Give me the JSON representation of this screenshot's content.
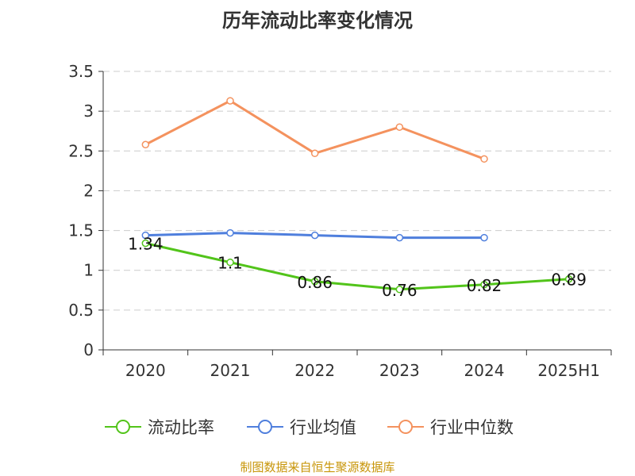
{
  "chart_data": {
    "type": "line",
    "title": "历年流动比率变化情况",
    "categories": [
      "2020",
      "2021",
      "2022",
      "2023",
      "2024",
      "2025H1"
    ],
    "ylim": [
      0,
      3.5
    ],
    "yticks": [
      "0",
      "0.5",
      "1",
      "1.5",
      "2",
      "2.5",
      "3",
      "3.5"
    ],
    "grid": true,
    "legend_position": "bottom",
    "series": [
      {
        "name": "流动比率",
        "color": "#52c41a",
        "values": [
          1.34,
          1.1,
          0.86,
          0.76,
          0.82,
          0.89
        ],
        "labels": [
          "1.34",
          "1.1",
          "0.86",
          "0.76",
          "0.82",
          "0.89"
        ]
      },
      {
        "name": "行业均值",
        "color": "#4f7fdd",
        "values": [
          1.44,
          1.47,
          1.44,
          1.41,
          1.41,
          null
        ]
      },
      {
        "name": "行业中位数",
        "color": "#f4925e",
        "values": [
          2.58,
          3.13,
          2.47,
          2.8,
          2.4,
          null
        ]
      }
    ]
  },
  "source": "制图数据来自恒生聚源数据库"
}
